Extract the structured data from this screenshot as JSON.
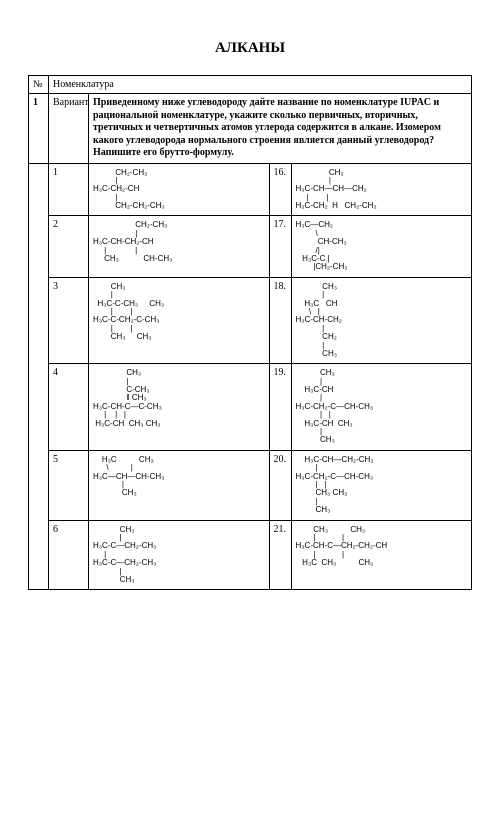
{
  "title": "АЛКАНЫ",
  "header": {
    "num": "№",
    "nom": "Номенклатура"
  },
  "task": {
    "num": "1",
    "variant_label": "Вариант",
    "text": "Приведенному ниже углеводороду дайте название по номенклатуре IUPAC и рациональной номенклатуре, укажите сколько первичных, вторичных, третичных и четвертичных атомов углерода содержится в алкане. Изомером какого углеводорода нормального строения является данный углеводород? Напишите его брутто-формулу."
  },
  "rows": [
    {
      "l": "1",
      "ls": "          CH₂-CH₃\n          |\nH₃C-CH₂-CH\n          |\n          CH₂-CH₂-CH₃",
      "r": "16.",
      "rs": "               CH₃\n               |\nH₃C-CH—CH—CH₂\n     |        |\nH₃C-CH₂  H   CH₂-CH₃"
    },
    {
      "l": "2",
      "ls": "                   CH₂-CH₃\n                   |\nH₃C-CH-CH₂-CH\n     |             |\n     CH₃           CH-CH₃",
      "r": "17.",
      "rs": "H₃C—CH₂\n         \\\n          CH-CH₃\n         /|\n   H₃C-C |\n        |CH₂-CH₃"
    },
    {
      "l": "3",
      "ls": "        CH₃\n        |\n  H₃C-C-CH₃     CH₃\n        |        |\nH₃C-C-CH₂-C-CH₃\n        |        |\n        CH₃     CH₃",
      "r": "18.",
      "rs": "            CH₃\n            |\n    H₃C   CH\n      \\   |\nH₃C-CH-CH₂\n            |\n            CH₂\n            |\n            CH₃"
    },
    {
      "l": "4",
      "ls": "               CH₃\n               |\n               C-CH₃\n               ‖ CH₃\nH₃C-CH-C—C-CH₃\n     |    |   |\n H₃C-CH  CH₃ CH₃",
      "r": "19.",
      "rs": "           CH₃\n           |\n    H₃C-CH\n           |\nH₃C-CH₂-C—CH-CH₃\n           |   |\n    H₃C-CH  CH₃\n           |\n           CH₃"
    },
    {
      "l": "5",
      "ls": "    H₃C          CH₃\n      \\          |\nH₃C—CH—CH-CH₃\n             |\n             CH₃",
      "r": "20.",
      "rs": "    H₃C-CH—CH₂-CH₃\n         |\nH₃C-CH₂-C—CH-CH₃\n         |   |\n         CH₃ CH₃\n         |\n         CH₃"
    },
    {
      "l": "6",
      "ls": "            CH₃\n            |\nH₃C-C—CH₂-CH₃\n     |\nH₃C-C—CH₂-CH₃\n            |\n            CH₃",
      "r": "21.",
      "rs": "        CH₃          CH₃\n        |            |\nH₃C-CH-C—CH₂-CH₂-CH\n        |            |\n   H₃C  CH₃          CH₃"
    }
  ]
}
